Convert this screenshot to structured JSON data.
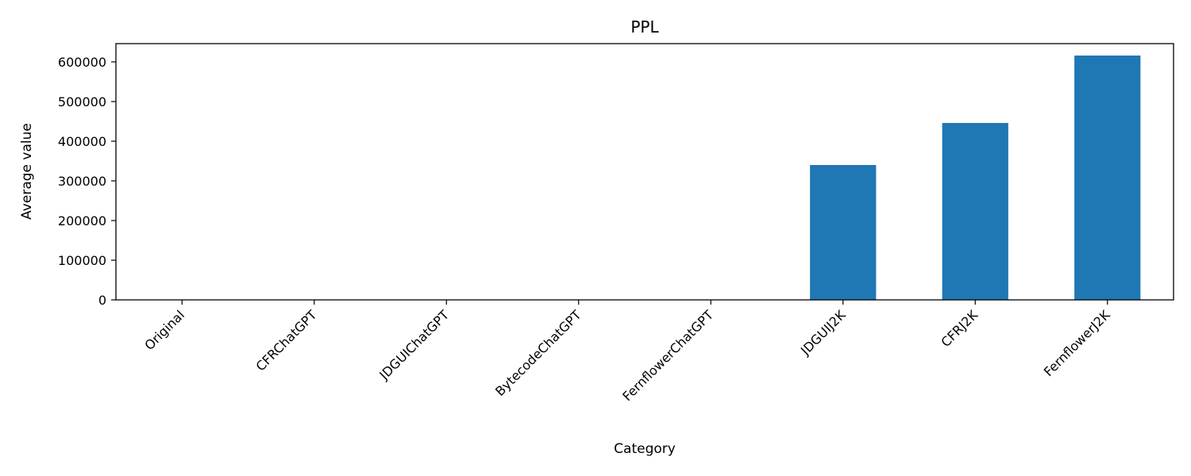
{
  "chart_data": {
    "type": "bar",
    "title": "PPL",
    "xlabel": "Category",
    "ylabel": "Average value",
    "categories": [
      "Original",
      "CFRChatGPT",
      "JDGUIChatGPT",
      "BytecodeChatGPT",
      "FernflowerChatGPT",
      "JDGUIJ2K",
      "CFRJ2K",
      "FernflowerJ2K"
    ],
    "values": [
      2,
      3,
      3,
      2,
      3,
      340000,
      446000,
      616000
    ],
    "ylim": [
      0,
      646000
    ],
    "yticks": [
      0,
      100000,
      200000,
      300000,
      400000,
      500000,
      600000
    ],
    "ytick_labels": [
      "0",
      "100000",
      "200000",
      "300000",
      "400000",
      "500000",
      "600000"
    ],
    "grid": false,
    "bar_color": "#1f77b4"
  }
}
